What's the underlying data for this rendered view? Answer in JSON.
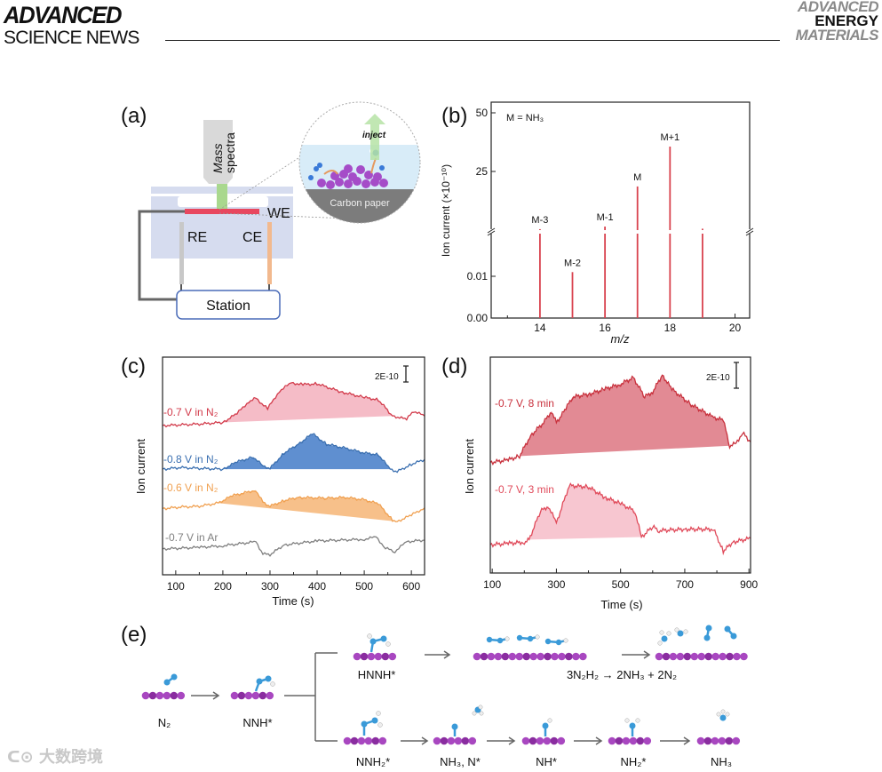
{
  "header": {
    "journal_left_line1": "ADVANCED",
    "journal_left_line2": "SCIENCE NEWS",
    "journal_right_line1": "ADVANCED",
    "journal_right_line2": "ENERGY",
    "journal_right_line3": "MATERIALS"
  },
  "watermark": "大数跨境",
  "panel_a": {
    "label": "(a)",
    "mass_spectra_line1": "Mass",
    "mass_spectra_line2": "spectra",
    "inject": "inject",
    "carbon_paper": "Carbon paper",
    "we": "WE",
    "re": "RE",
    "ce": "CE",
    "station": "Station"
  },
  "panel_e": {
    "label": "(e)",
    "n2": "N₂",
    "nnh": "NNH*",
    "hnnh": "HNNH*",
    "reaction": "3N₂H₂ → 2NH₃ + 2N₂",
    "nnh2": "NNH₂*",
    "nh3_n": "NH₃, N*",
    "nh": "NH*",
    "nh2": "NH₂*",
    "nh3": "NH₃"
  },
  "chart_data": [
    {
      "id": "b",
      "panel_label": "(b)",
      "type": "bar",
      "annotation": "M = NH₃",
      "xlabel": "m/z",
      "ylabel": "Ion current (×10⁻¹⁰)",
      "xlim": [
        12.5,
        20.45
      ],
      "x_ticks": [
        "14",
        "16",
        "18",
        "20"
      ],
      "y_broken": true,
      "y_lower_range": [
        0,
        0.02
      ],
      "y_upper_range": [
        0,
        54
      ],
      "y_ticks_lower": [
        "0.00",
        "0.01"
      ],
      "y_ticks_upper": [
        "25",
        "50"
      ],
      "x": [
        14,
        15,
        16,
        17,
        18,
        19
      ],
      "values": [
        0.4,
        0.011,
        1.5,
        18.6,
        35.6,
        0.6
      ],
      "bar_labels": [
        "M-3",
        "M-2",
        "M-1",
        "M",
        "M+1",
        ""
      ],
      "color": "#d9434f"
    },
    {
      "id": "c",
      "panel_label": "(c)",
      "type": "line",
      "xlabel": "Time (s)",
      "ylabel": "Ion current",
      "scale_bar": "2E-10",
      "xlim": [
        72,
        628
      ],
      "ylim": [
        0,
        27
      ],
      "y_unit": "1E-10 (offset)",
      "x_ticks": [
        "100",
        "200",
        "300",
        "400",
        "500",
        "600"
      ],
      "series": [
        {
          "name": "-0.7 V in N₂",
          "color": "#d23a4a",
          "fill": "#f5bcc7",
          "fill_range": [
            200,
            560
          ],
          "points": [
            [
              72,
              18.5
            ],
            [
              110,
              18.6
            ],
            [
              150,
              18.7
            ],
            [
              200,
              18.9
            ],
            [
              230,
              20.0
            ],
            [
              255,
              21.5
            ],
            [
              270,
              21.9
            ],
            [
              295,
              20.6
            ],
            [
              320,
              22.8
            ],
            [
              345,
              23.8
            ],
            [
              370,
              23.6
            ],
            [
              400,
              23.7
            ],
            [
              450,
              22.7
            ],
            [
              500,
              22.0
            ],
            [
              530,
              21.7
            ],
            [
              560,
              19.7
            ],
            [
              590,
              19.3
            ],
            [
              605,
              20.3
            ],
            [
              628,
              19.7
            ]
          ]
        },
        {
          "name": "-0.8 V in N₂",
          "color": "#3a6fb0",
          "fill": "#5f8fd0",
          "fill_range": [
            200,
            555
          ],
          "points": [
            [
              72,
              13.1
            ],
            [
              110,
              13.3
            ],
            [
              150,
              13.2
            ],
            [
              200,
              13.1
            ],
            [
              230,
              14.0
            ],
            [
              265,
              14.6
            ],
            [
              285,
              13.5
            ],
            [
              300,
              13.2
            ],
            [
              330,
              15.1
            ],
            [
              360,
              16.2
            ],
            [
              390,
              17.5
            ],
            [
              420,
              16.2
            ],
            [
              460,
              15.7
            ],
            [
              500,
              15.1
            ],
            [
              530,
              14.9
            ],
            [
              555,
              13.1
            ],
            [
              570,
              12.8
            ],
            [
              600,
              13.7
            ],
            [
              628,
              14.3
            ]
          ]
        },
        {
          "name": "-0.6 V in N₂",
          "color": "#f0a050",
          "fill": "#f7c08a",
          "fill_range": [
            190,
            570
          ],
          "points": [
            [
              72,
              8.2
            ],
            [
              110,
              8.4
            ],
            [
              150,
              8.5
            ],
            [
              190,
              8.9
            ],
            [
              220,
              9.8
            ],
            [
              270,
              10.5
            ],
            [
              285,
              9.0
            ],
            [
              300,
              8.5
            ],
            [
              330,
              9.2
            ],
            [
              360,
              9.6
            ],
            [
              420,
              9.5
            ],
            [
              460,
              9.6
            ],
            [
              500,
              9.3
            ],
            [
              530,
              8.8
            ],
            [
              560,
              6.8
            ],
            [
              570,
              6.6
            ],
            [
              600,
              7.4
            ],
            [
              628,
              8.3
            ]
          ]
        },
        {
          "name": "-0.7 V in Ar",
          "color": "#7f7f7f",
          "fill": null,
          "fill_range": null,
          "points": [
            [
              72,
              3.2
            ],
            [
              150,
              3.4
            ],
            [
              200,
              3.6
            ],
            [
              270,
              4.1
            ],
            [
              285,
              2.6
            ],
            [
              300,
              2.5
            ],
            [
              330,
              3.7
            ],
            [
              400,
              4.2
            ],
            [
              500,
              4.4
            ],
            [
              525,
              4.7
            ],
            [
              545,
              3.3
            ],
            [
              565,
              2.9
            ],
            [
              590,
              4.1
            ],
            [
              628,
              4.3
            ]
          ]
        }
      ]
    },
    {
      "id": "d",
      "panel_label": "(d)",
      "type": "line",
      "xlabel": "Time (s)",
      "ylabel": "Ion current",
      "scale_bar": "2E-10",
      "xlim": [
        94,
        905
      ],
      "ylim": [
        0,
        16.8
      ],
      "y_unit": "1E-10 (offset)",
      "x_ticks": [
        "100",
        "300",
        "500",
        "700",
        "900"
      ],
      "series": [
        {
          "name": "-0.7 V, 8 min",
          "color": "#c8303c",
          "fill": "#e28a94",
          "fill_range": [
            185,
            840
          ],
          "points": [
            [
              94,
              8.6
            ],
            [
              150,
              8.8
            ],
            [
              185,
              9.1
            ],
            [
              220,
              10.7
            ],
            [
              260,
              11.7
            ],
            [
              285,
              12.6
            ],
            [
              300,
              11.7
            ],
            [
              330,
              12.8
            ],
            [
              350,
              13.7
            ],
            [
              400,
              13.9
            ],
            [
              450,
              14.3
            ],
            [
              500,
              14.7
            ],
            [
              540,
              15.2
            ],
            [
              575,
              13.7
            ],
            [
              600,
              14.1
            ],
            [
              630,
              15.4
            ],
            [
              660,
              14.3
            ],
            [
              720,
              13.1
            ],
            [
              790,
              12.1
            ],
            [
              820,
              11.9
            ],
            [
              840,
              9.9
            ],
            [
              860,
              10.1
            ],
            [
              880,
              10.9
            ],
            [
              905,
              10.2
            ]
          ]
        },
        {
          "name": "-0.7 V, 3 min",
          "color": "#e04a5a",
          "fill": "#f7c6d0",
          "fill_range": [
            215,
            565
          ],
          "points": [
            [
              94,
              2.2
            ],
            [
              150,
              2.3
            ],
            [
              200,
              2.4
            ],
            [
              215,
              2.6
            ],
            [
              250,
              4.8
            ],
            [
              275,
              5.2
            ],
            [
              300,
              3.9
            ],
            [
              340,
              6.8
            ],
            [
              400,
              6.7
            ],
            [
              450,
              5.9
            ],
            [
              500,
              5.4
            ],
            [
              545,
              4.8
            ],
            [
              565,
              2.8
            ],
            [
              600,
              3.6
            ],
            [
              620,
              3.3
            ],
            [
              700,
              3.4
            ],
            [
              790,
              3.4
            ],
            [
              820,
              1.7
            ],
            [
              850,
              2.4
            ],
            [
              905,
              2.7
            ]
          ]
        }
      ]
    }
  ]
}
